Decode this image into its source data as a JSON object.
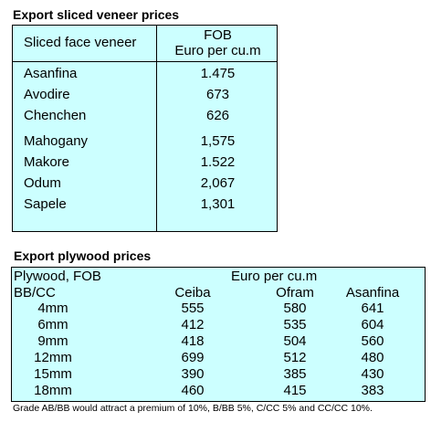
{
  "veneer": {
    "title": "Export  sliced veneer  prices",
    "col1_header": "Sliced face veneer",
    "col2_header_line1": "FOB",
    "col2_header_line2": "Euro per cu.m",
    "rows": [
      {
        "name": "Asanfina",
        "value": "1.475"
      },
      {
        "name": "Avodire",
        "value": "673"
      },
      {
        "name": "Chenchen",
        "value": "626"
      },
      {
        "name": "Mahogany",
        "value": "1,575"
      },
      {
        "name": "Makore",
        "value": "1.522"
      },
      {
        "name": "Odum",
        "value": "2,067"
      },
      {
        "name": "Sapele",
        "value": "1,301"
      }
    ]
  },
  "plywood": {
    "title": "Export plywood prices",
    "header_left": "Plywood, FOB",
    "header_right": "Euro per cu.m",
    "sub_header_left": "BB/CC",
    "species": [
      "Ceiba",
      "Ofram",
      "Asanfina"
    ],
    "rows": [
      {
        "size": "4mm",
        "values": [
          "555",
          "580",
          "641"
        ]
      },
      {
        "size": "6mm",
        "values": [
          "412",
          "535",
          "604"
        ]
      },
      {
        "size": "9mm",
        "values": [
          "418",
          "504",
          "560"
        ]
      },
      {
        "size": "12mm",
        "values": [
          "699",
          "512",
          "480"
        ]
      },
      {
        "size": "15mm",
        "values": [
          "390",
          "385",
          "430"
        ]
      },
      {
        "size": "18mm",
        "values": [
          "460",
          "415",
          "383"
        ]
      }
    ],
    "footnote": "Grade AB/BB would attract a premium of 10%, B/BB 5%, C/CC 5% and CC/CC 10%."
  }
}
